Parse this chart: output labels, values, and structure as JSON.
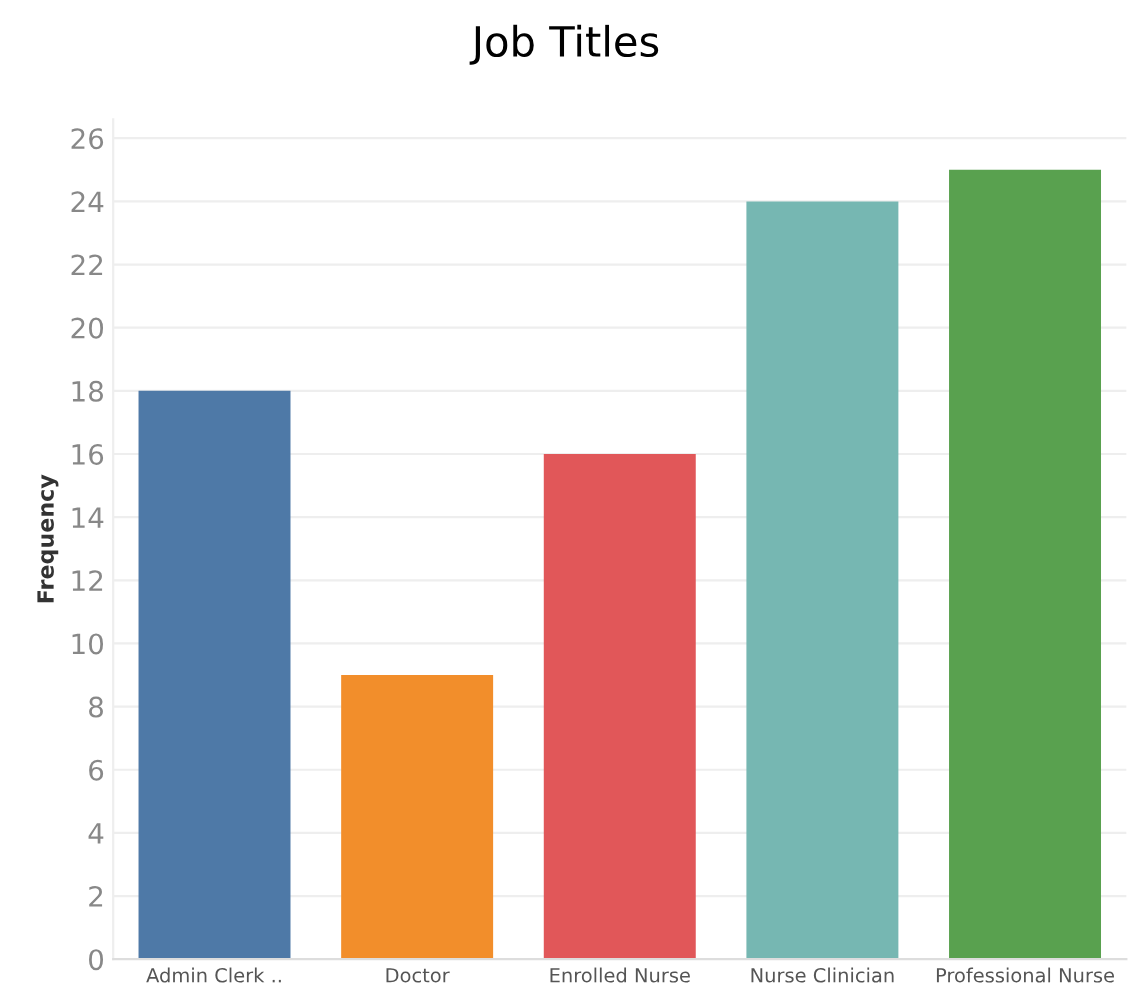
{
  "chart_data": {
    "type": "bar",
    "title": "Job Titles",
    "ylabel": "Frequency",
    "categories": [
      "Admin Clerk ..",
      "Doctor",
      "Enrolled Nurse",
      "Nurse Clinician",
      "Professional Nurse"
    ],
    "values": [
      18,
      9,
      16,
      24,
      25
    ],
    "colors": [
      "#4e79a7",
      "#f28e2b",
      "#e15759",
      "#76b7b2",
      "#59a14f"
    ],
    "ylim": [
      0,
      26.6
    ],
    "yticks": [
      0,
      2,
      4,
      6,
      8,
      10,
      12,
      14,
      16,
      18,
      20,
      22,
      24,
      26
    ],
    "grid": "y"
  }
}
